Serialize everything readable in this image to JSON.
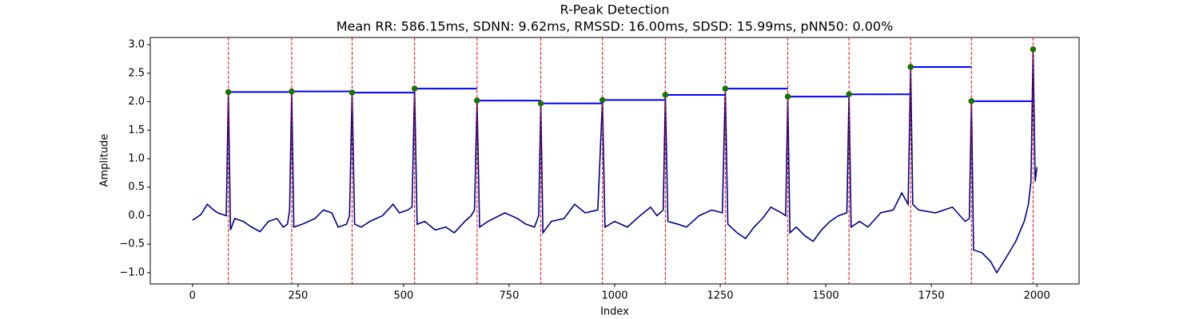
{
  "chart_data": {
    "type": "line",
    "title": "R-Peak Detection",
    "subtitle": "Mean RR: 586.15ms, SDNN: 9.62ms, RMSSD: 16.00ms, SDSD: 15.99ms, pNN50: 0.00%",
    "xlabel": "Index",
    "ylabel": "Amplitude",
    "xlim": [
      -100,
      2100
    ],
    "ylim": [
      -1.197,
      3.127
    ],
    "xticks": [
      0,
      250,
      500,
      750,
      1000,
      1250,
      1500,
      1750,
      2000
    ],
    "yticks": [
      {
        "value": -1,
        "label": "−1.0"
      },
      {
        "value": -0.5,
        "label": "−0.5"
      },
      {
        "value": 0,
        "label": "0.0"
      },
      0.5,
      {
        "value": 1,
        "label": "1.0"
      },
      1.5,
      {
        "value": 2,
        "label": "2.0"
      },
      2.5,
      {
        "value": 3,
        "label": "3.0"
      }
    ],
    "signal": {
      "color": "#00008b",
      "x": [
        0,
        20,
        35,
        50,
        60,
        80,
        85,
        90,
        100,
        120,
        140,
        160,
        180,
        200,
        215,
        225,
        230,
        235,
        240,
        260,
        290,
        310,
        330,
        345,
        365,
        372,
        378,
        384,
        400,
        420,
        450,
        475,
        490,
        510,
        520,
        526,
        532,
        550,
        575,
        600,
        620,
        645,
        660,
        668,
        674,
        680,
        700,
        740,
        770,
        790,
        810,
        820,
        825,
        830,
        850,
        880,
        905,
        930,
        960,
        971,
        977,
        1000,
        1030,
        1060,
        1085,
        1100,
        1115,
        1120,
        1126,
        1150,
        1170,
        1200,
        1230,
        1255,
        1262,
        1268,
        1290,
        1310,
        1330,
        1350,
        1370,
        1395,
        1405,
        1410,
        1415,
        1430,
        1450,
        1470,
        1490,
        1510,
        1530,
        1550,
        1555,
        1560,
        1580,
        1600,
        1630,
        1660,
        1680,
        1695,
        1701,
        1706,
        1720,
        1760,
        1800,
        1830,
        1840,
        1845,
        1850,
        1870,
        1890,
        1905,
        1930,
        1950,
        1970,
        1980,
        1986,
        1991,
        1996,
        2000
      ],
      "values": [
        -0.08,
        0.02,
        0.2,
        0.1,
        0.05,
        0.0,
        2.17,
        -0.25,
        -0.05,
        -0.1,
        -0.2,
        -0.28,
        -0.1,
        -0.05,
        -0.2,
        -0.15,
        0.1,
        2.18,
        -0.2,
        -0.15,
        -0.05,
        0.1,
        0.05,
        -0.2,
        -0.15,
        0.0,
        2.16,
        -0.15,
        -0.2,
        -0.1,
        0.0,
        0.2,
        0.05,
        0.1,
        0.15,
        2.23,
        -0.15,
        -0.1,
        -0.25,
        -0.2,
        -0.3,
        -0.1,
        0.0,
        0.1,
        2.02,
        -0.2,
        -0.1,
        0.05,
        -0.05,
        -0.15,
        -0.2,
        0.0,
        1.97,
        -0.3,
        -0.1,
        -0.05,
        0.2,
        0.05,
        0.1,
        2.03,
        -0.2,
        -0.1,
        -0.2,
        0.0,
        0.15,
        0.0,
        0.1,
        2.12,
        -0.1,
        -0.15,
        -0.2,
        0.0,
        0.1,
        0.05,
        2.23,
        -0.15,
        -0.3,
        -0.4,
        -0.2,
        -0.05,
        0.15,
        0.05,
        0.0,
        2.09,
        -0.3,
        -0.2,
        -0.35,
        -0.45,
        -0.25,
        -0.1,
        0.0,
        0.05,
        2.13,
        -0.2,
        -0.1,
        -0.2,
        0.05,
        0.1,
        0.4,
        0.2,
        2.61,
        0.2,
        0.1,
        0.05,
        0.15,
        -0.1,
        -0.05,
        2.01,
        -0.6,
        -0.65,
        -0.8,
        -1.0,
        -0.7,
        -0.45,
        -0.1,
        0.2,
        0.6,
        2.92,
        0.6,
        0.85
      ]
    },
    "peaks": {
      "color": "#008000",
      "line_color": "#ff0000",
      "interval_color": "#0000ff",
      "x": [
        85,
        235,
        378,
        526,
        674,
        825,
        971,
        1120,
        1262,
        1410,
        1555,
        1701,
        1845,
        1991
      ],
      "values": [
        2.17,
        2.18,
        2.16,
        2.23,
        2.02,
        1.97,
        2.03,
        2.12,
        2.23,
        2.09,
        2.13,
        2.61,
        2.01,
        2.92
      ]
    }
  }
}
